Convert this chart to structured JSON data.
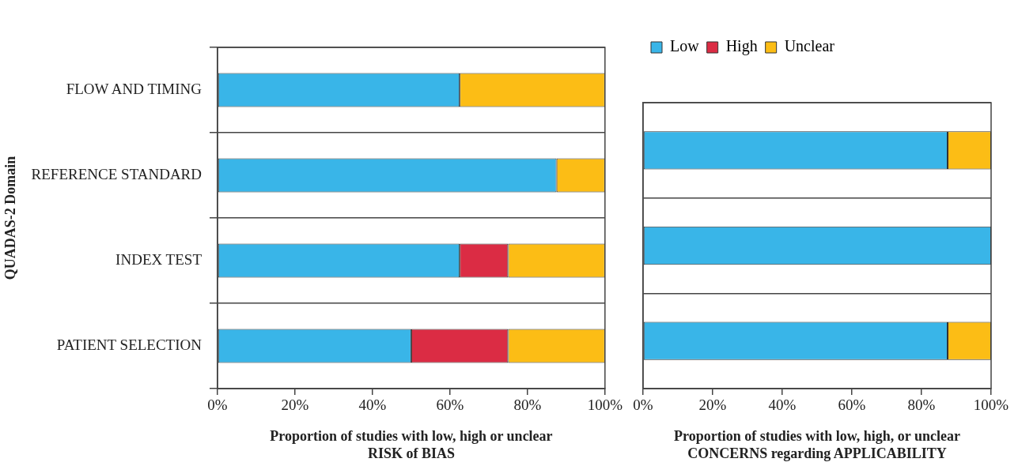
{
  "chart_data": [
    {
      "type": "bar",
      "orientation": "horizontal",
      "stacked": true,
      "ylabel": "QUADAS-2 Domain",
      "xlabel": "Proportion of studies with low, high or unclear\nRISK of BIAS",
      "categories": [
        "FLOW AND TIMING",
        "REFERENCE STANDARD",
        "INDEX TEST",
        "PATIENT SELECTION"
      ],
      "series": [
        {
          "color": "#39b5e8",
          "values": [
            62.5,
            87.5,
            62.5,
            50
          ]
        },
        {
          "color": "#db2c44",
          "values": [
            0,
            0,
            12.5,
            25
          ]
        },
        {
          "color": "#fcbd15",
          "values": [
            37.5,
            12.5,
            25,
            25
          ]
        }
      ],
      "xlim": [
        0,
        100
      ],
      "xticks": [
        {
          "value": 0,
          "label": "0%"
        },
        {
          "value": 20,
          "label": "20%"
        },
        {
          "value": 40,
          "label": "40%"
        },
        {
          "value": 60,
          "label": "60%"
        },
        {
          "value": 80,
          "label": "80%"
        },
        {
          "value": 100,
          "label": "100%"
        }
      ],
      "grid": "y",
      "legend": false
    },
    {
      "type": "bar",
      "orientation": "horizontal",
      "stacked": true,
      "xlabel": "Proportion of studies with low, high, or unclear\nCONCERNS regarding APPLICABILITY",
      "categories": [
        null,
        null,
        null
      ],
      "series": [
        {
          "name": "Low",
          "color": "#39b5e8",
          "values": [
            87.5,
            100,
            87.5
          ]
        },
        {
          "name": "High",
          "color": "#db2c44",
          "values": [
            0,
            0,
            0
          ]
        },
        {
          "name": "Unclear",
          "color": "#fcbd15",
          "values": [
            12.5,
            0,
            12.5
          ]
        }
      ],
      "xlim": [
        0,
        100
      ],
      "xticks": [
        {
          "value": 0,
          "label": "0%"
        },
        {
          "value": 20,
          "label": "20%"
        },
        {
          "value": 40,
          "label": "40%"
        },
        {
          "value": 60,
          "label": "60%"
        },
        {
          "value": 80,
          "label": "80%"
        },
        {
          "value": 100,
          "label": "100%"
        }
      ],
      "grid": "y",
      "legend": "top left",
      "tick_labels": "x"
    }
  ]
}
